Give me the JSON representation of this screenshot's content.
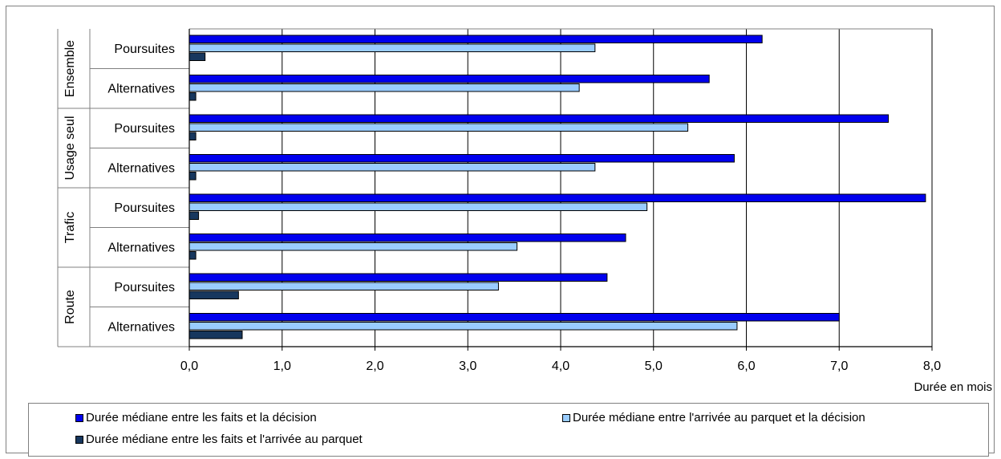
{
  "chart_data": {
    "type": "bar",
    "orientation": "horizontal",
    "xlabel": "Durée en mois",
    "xlim": [
      0,
      8
    ],
    "xticks": [
      "0,0",
      "1,0",
      "2,0",
      "3,0",
      "4,0",
      "5,0",
      "6,0",
      "7,0",
      "8,0"
    ],
    "grid": "vertical",
    "legend_position": "bottom",
    "groups": [
      {
        "name": "Ensemble",
        "categories": [
          "Poursuites",
          "Alternatives"
        ]
      },
      {
        "name": "Usage seul",
        "categories": [
          "Poursuites",
          "Alternatives"
        ]
      },
      {
        "name": "Trafic",
        "categories": [
          "Poursuites",
          "Alternatives"
        ]
      },
      {
        "name": "Route",
        "categories": [
          "Poursuites",
          "Alternatives"
        ]
      }
    ],
    "series": [
      {
        "name": "Durée médiane entre les faits et la décision",
        "color": "#0000ee",
        "values": [
          6.17,
          5.6,
          7.53,
          5.87,
          7.93,
          4.7,
          4.5,
          7.0
        ]
      },
      {
        "name": "Durée médiane entre l'arrivée au parquet et la décision",
        "color": "#99ccff",
        "values": [
          4.37,
          4.2,
          5.37,
          4.37,
          4.93,
          3.53,
          3.33,
          5.9
        ]
      },
      {
        "name": "Durée médiane entre les faits et l'arrivée au parquet",
        "color": "#17375e",
        "values": [
          0.17,
          0.07,
          0.07,
          0.07,
          0.1,
          0.07,
          0.53,
          0.57
        ]
      }
    ]
  }
}
